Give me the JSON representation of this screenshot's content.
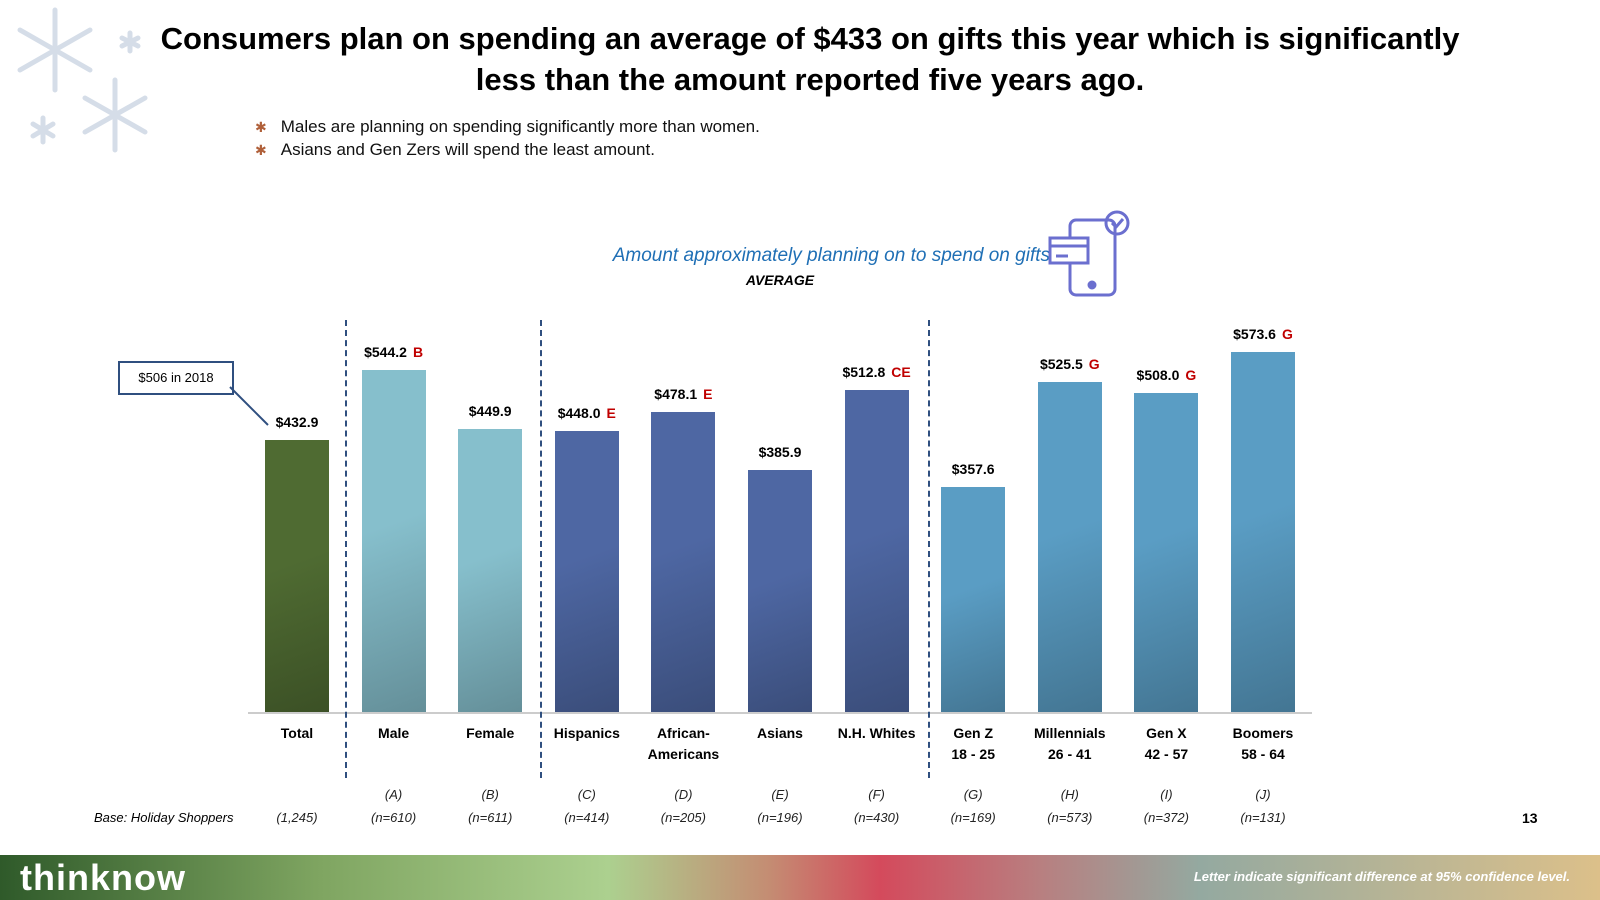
{
  "title": "Consumers plan on spending an average of $433 on gifts this year which is significantly less than the amount reported five years ago.",
  "bullets": [
    "Males are planning on spending significantly more than women.",
    "Asians and Gen Zers will spend the least amount."
  ],
  "callout": "$506 in 2018",
  "base_label": "Base: Holiday Shoppers",
  "page_number": "13",
  "footer": {
    "logo": "thinknow",
    "note": "Letter indicate significant difference at 95% confidence level."
  },
  "chart_data": {
    "type": "bar",
    "title": "Amount approximately planning on to spend on gifts",
    "subtitle": "AVERAGE",
    "ylim": [
      0,
      600
    ],
    "categories": [
      [
        "Total"
      ],
      [
        "Male"
      ],
      [
        "Female"
      ],
      [
        "Hispanics"
      ],
      [
        "African-",
        "Americans"
      ],
      [
        "Asians"
      ],
      [
        "N.H. Whites"
      ],
      [
        "Gen Z",
        "18 - 25"
      ],
      [
        "Millennials",
        "26 - 41"
      ],
      [
        "Gen X",
        "42 - 57"
      ],
      [
        "Boomers",
        "58 - 64"
      ]
    ],
    "values": [
      432.9,
      544.2,
      449.9,
      448.0,
      478.1,
      385.9,
      512.8,
      357.6,
      525.5,
      508.0,
      573.6
    ],
    "value_labels": [
      "$432.9",
      "$544.2",
      "$449.9",
      "$448.0",
      "$478.1",
      "$385.9",
      "$512.8",
      "$357.6",
      "$525.5",
      "$508.0",
      "$573.6"
    ],
    "sig_letters": [
      "",
      "B",
      "",
      "E",
      "E",
      "",
      "CE",
      "",
      "G",
      "G",
      "G"
    ],
    "column_letters": [
      "",
      "(A)",
      "(B)",
      "(C)",
      "(D)",
      "(E)",
      "(F)",
      "(G)",
      "(H)",
      "(I)",
      "(J)"
    ],
    "bases": [
      "(1,245)",
      "(n=610)",
      "(n=611)",
      "(n=414)",
      "(n=205)",
      "(n=196)",
      "(n=430)",
      "(n=169)",
      "(n=573)",
      "(n=372)",
      "(n=131)"
    ],
    "colors": [
      "#4f6b32",
      "#86bfcc",
      "#86bfcc",
      "#4e67a3",
      "#4e67a3",
      "#4e67a3",
      "#4e67a3",
      "#5a9dc4",
      "#5a9dc4",
      "#5a9dc4",
      "#5a9dc4"
    ]
  }
}
